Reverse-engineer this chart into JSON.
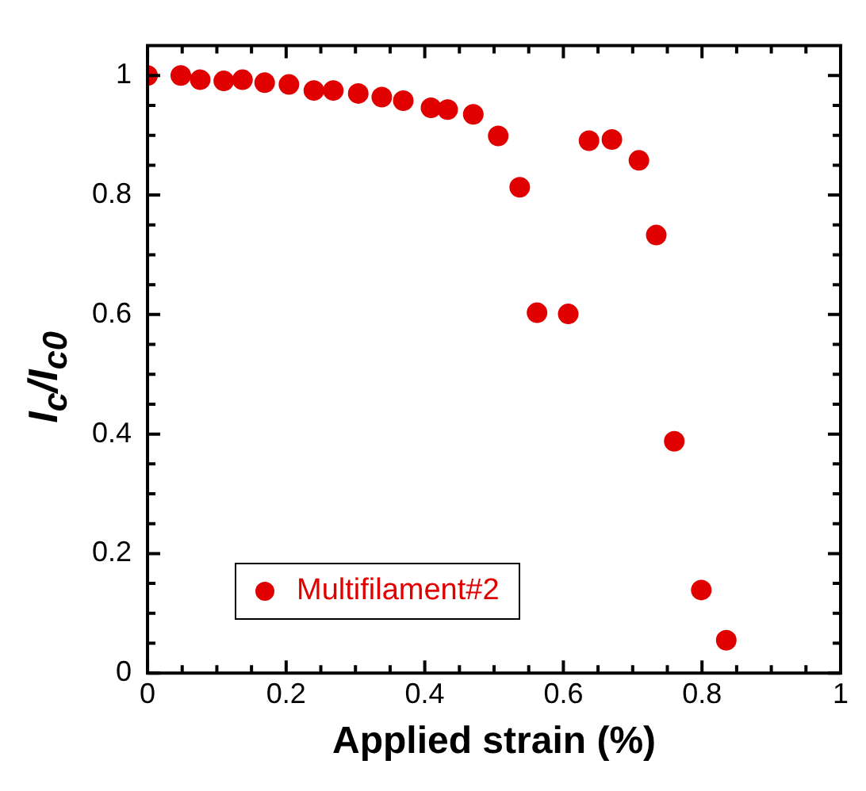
{
  "chart_data": {
    "type": "scatter",
    "xlabel": "Applied strain (%)",
    "ylabel": "I$_{c}$/I$_{c0}$",
    "xlim": [
      0,
      1
    ],
    "ylim": [
      0,
      1.05
    ],
    "xticks": [
      0,
      {
        "value": 0.05,
        "label": null
      },
      {
        "value": 0.1,
        "label": null
      },
      {
        "value": 0.15,
        "label": null
      },
      0.2,
      {
        "value": 0.25,
        "label": null
      },
      {
        "value": 0.3,
        "label": null
      },
      {
        "value": 0.35,
        "label": null
      },
      0.4,
      {
        "value": 0.45,
        "label": null
      },
      {
        "value": 0.5,
        "label": null
      },
      {
        "value": 0.55,
        "label": null
      },
      0.6,
      {
        "value": 0.65,
        "label": null
      },
      {
        "value": 0.7,
        "label": null
      },
      {
        "value": 0.75,
        "label": null
      },
      0.8,
      {
        "value": 0.85,
        "label": null
      },
      {
        "value": 0.9,
        "label": null
      },
      {
        "value": 0.95,
        "label": null
      },
      1
    ],
    "yticks": [
      0,
      {
        "value": 0.05,
        "label": null
      },
      {
        "value": 0.1,
        "label": null
      },
      {
        "value": 0.15,
        "label": null
      },
      0.2,
      {
        "value": 0.25,
        "label": null
      },
      {
        "value": 0.3,
        "label": null
      },
      {
        "value": 0.35,
        "label": null
      },
      0.4,
      {
        "value": 0.45,
        "label": null
      },
      {
        "value": 0.5,
        "label": null
      },
      {
        "value": 0.55,
        "label": null
      },
      0.6,
      {
        "value": 0.65,
        "label": null
      },
      {
        "value": 0.7,
        "label": null
      },
      {
        "value": 0.75,
        "label": null
      },
      0.8,
      {
        "value": 0.85,
        "label": null
      },
      {
        "value": 0.9,
        "label": null
      },
      {
        "value": 0.95,
        "label": null
      },
      1
    ],
    "grid": false,
    "legend": "bottom left",
    "marker": "circle",
    "series": [
      {
        "name": "Multifilament#2",
        "color": "#e00000",
        "x": [
          0.0,
          0.048,
          0.076,
          0.11,
          0.137,
          0.169,
          0.204,
          0.24,
          0.268,
          0.304,
          0.338,
          0.369,
          0.409,
          0.433,
          0.47,
          0.506,
          0.537,
          0.562,
          0.607,
          0.637,
          0.67,
          0.709,
          0.734,
          0.76,
          0.799,
          0.835
        ],
        "values": [
          1.0,
          1.0,
          0.993,
          0.991,
          0.993,
          0.988,
          0.985,
          0.975,
          0.975,
          0.97,
          0.964,
          0.958,
          0.946,
          0.943,
          0.935,
          0.899,
          0.813,
          0.603,
          0.601,
          0.891,
          0.893,
          0.858,
          0.733,
          0.388,
          0.139,
          0.055
        ]
      }
    ]
  }
}
